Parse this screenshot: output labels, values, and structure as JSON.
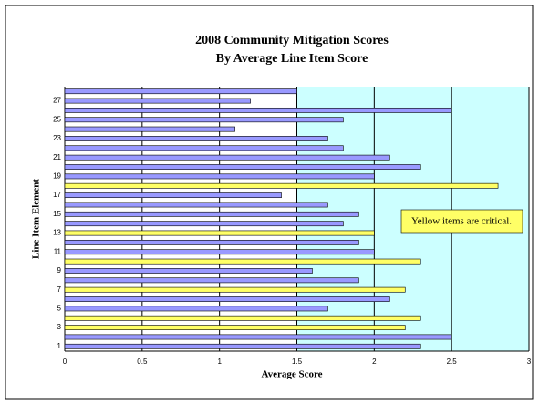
{
  "chart_data": {
    "type": "barh",
    "title": "2008  Community Mitigation Scores",
    "subtitle": "By Average Line Item Score",
    "xlabel": "Average Score",
    "ylabel": "Line Item Element",
    "annotation": "Yellow items are critical.",
    "categories": [
      "1",
      null,
      "3",
      null,
      "5",
      null,
      "7",
      null,
      "9",
      null,
      "11",
      null,
      "13",
      null,
      "15",
      null,
      "17",
      null,
      "19",
      null,
      "21",
      null,
      "23",
      null,
      "25",
      null,
      "27",
      null
    ],
    "values": [
      2.3,
      2.5,
      2.2,
      2.3,
      1.7,
      2.1,
      2.2,
      1.9,
      1.6,
      2.3,
      2.0,
      1.9,
      2.0,
      1.8,
      1.9,
      1.7,
      1.4,
      2.8,
      2.0,
      2.3,
      2.1,
      1.8,
      1.7,
      1.1,
      1.8,
      2.5,
      1.2,
      1.5
    ],
    "colors": [
      "#9999ff",
      "#9999ff",
      "#ffff66",
      "#ffff66",
      "#9999ff",
      "#9999ff",
      "#ffff66",
      "#9999ff",
      "#9999ff",
      "#ffff66",
      "#9999ff",
      "#9999ff",
      "#ffff66",
      "#9999ff",
      "#9999ff",
      "#9999ff",
      "#9999ff",
      "#ffff66",
      "#9999ff",
      "#9999ff",
      "#9999ff",
      "#9999ff",
      "#9999ff",
      "#9999ff",
      "#9999ff",
      "#9999ff",
      "#9999ff",
      "#9999ff"
    ],
    "xlim": [
      0,
      3
    ],
    "xticks": [
      0,
      0.5,
      1,
      1.5,
      2,
      2.5,
      3
    ],
    "grid": true,
    "shaded_xrange": [
      1.5,
      3
    ],
    "shade_color": "#ccffff"
  }
}
